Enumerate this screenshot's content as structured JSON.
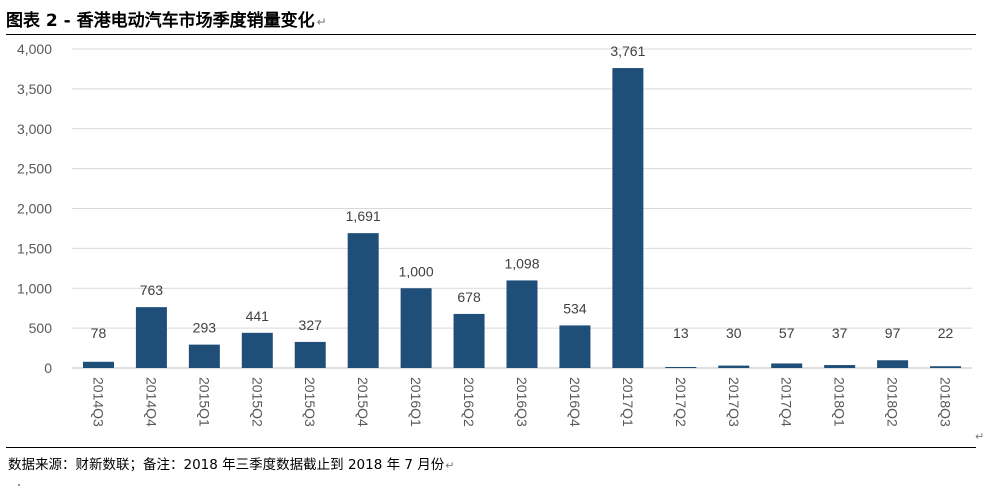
{
  "caption": {
    "text": "图表 2 -  香港电动汽车市场季度销量变化",
    "para_mark": "↵"
  },
  "source": {
    "text": "数据来源：财新数联；备注：2018 年三季度数据截止到 2018 年 7 月份",
    "para_mark": "↵"
  },
  "side_mark": "↵",
  "colors": {
    "bar": "#1f4e79",
    "grid": "#d9d9d9",
    "axis": "#bfbfbf"
  },
  "chart_data": {
    "type": "bar",
    "categories": [
      "2014Q3",
      "2014Q4",
      "2015Q1",
      "2015Q2",
      "2015Q3",
      "2015Q4",
      "2016Q1",
      "2016Q2",
      "2016Q3",
      "2016Q4",
      "2017Q1",
      "2017Q2",
      "2017Q3",
      "2017Q4",
      "2018Q1",
      "2018Q2",
      "2018Q3"
    ],
    "values": [
      78,
      763,
      293,
      441,
      327,
      1691,
      1000,
      678,
      1098,
      534,
      3761,
      13,
      30,
      57,
      37,
      97,
      22
    ],
    "data_labels": [
      "78",
      "763",
      "293",
      "441",
      "327",
      "1,691",
      "1,000",
      "678",
      "1,098",
      "534",
      "3,761",
      "13",
      "30",
      "57",
      "37",
      "97",
      "22"
    ],
    "y_ticks": [
      0,
      500,
      1000,
      1500,
      2000,
      2500,
      3000,
      3500,
      4000
    ],
    "y_tick_labels": [
      "0",
      "500",
      "1,000",
      "1,500",
      "2,000",
      "2,500",
      "3,000",
      "3,500",
      "4,000"
    ],
    "ylim": [
      0,
      4000
    ],
    "grid": true,
    "legend": "none",
    "title": "",
    "xlabel": "",
    "ylabel": ""
  }
}
